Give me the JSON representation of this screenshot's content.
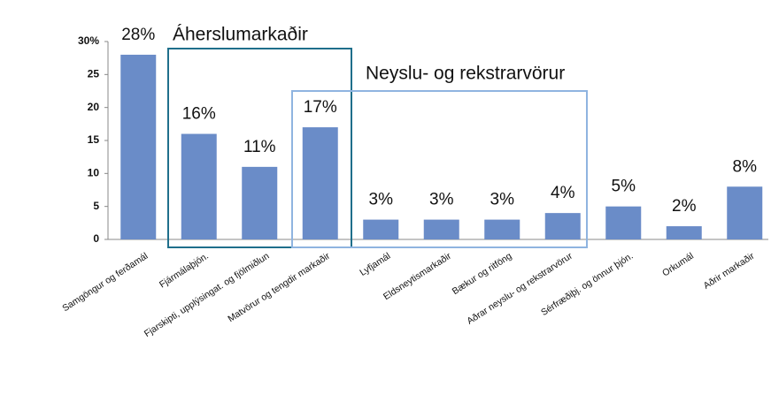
{
  "chart_data": {
    "type": "bar",
    "categories": [
      "Samgöngur og ferðamál",
      "Fjármálaþjón.",
      "Fjarskipti, upplýsingat. og fjölmiðlun",
      "Matvörur og tengdir markaðir",
      "Lyfjamál",
      "Eldsneytismarkaðir",
      "Bækur og ritföng",
      "Aðrar neyslu- og rekstrarvörur",
      "Sérfræðiþj. og önnur þjón.",
      "Orkumál",
      "Aðrir markaðir"
    ],
    "values": [
      28,
      16,
      11,
      17,
      3,
      3,
      3,
      4,
      5,
      2,
      8
    ],
    "value_labels": [
      "28%",
      "16%",
      "11%",
      "17%",
      "3%",
      "3%",
      "3%",
      "4%",
      "5%",
      "2%",
      "8%"
    ],
    "color": "#6a8cc8",
    "ylim": [
      0,
      30
    ],
    "yticks": [
      0,
      5,
      10,
      15,
      20,
      25,
      {
        "value": 30,
        "label": "30%"
      }
    ],
    "annotations": [
      "Áherslumarkaðir",
      "Neyslu- og rekstrarvörur"
    ]
  }
}
